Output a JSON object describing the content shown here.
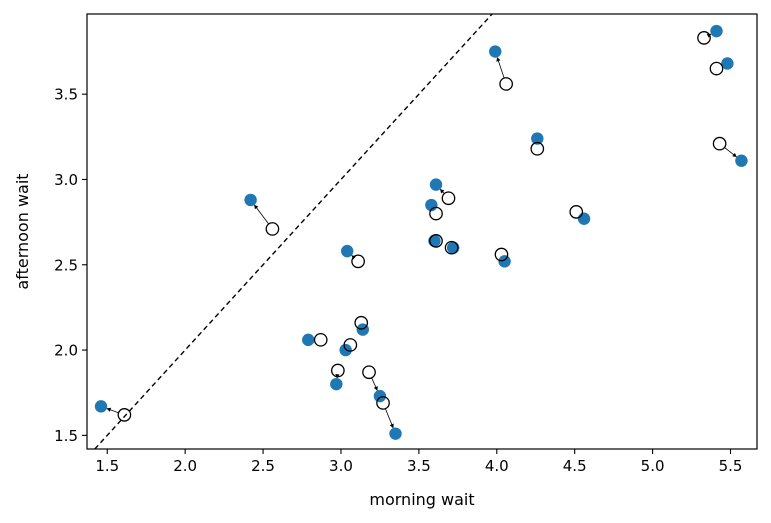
{
  "chart_data": {
    "type": "scatter",
    "xlabel": "morning wait",
    "ylabel": "afternoon wait",
    "xlim": [
      1.37,
      5.67
    ],
    "ylim": [
      1.42,
      3.97
    ],
    "xticks": [
      1.5,
      2.0,
      2.5,
      3.0,
      3.5,
      4.0,
      4.5,
      5.0,
      5.5
    ],
    "xtick_labels": [
      "1.5",
      "2.0",
      "2.5",
      "3.0",
      "3.5",
      "4.0",
      "4.5",
      "5.0",
      "5.5"
    ],
    "yticks": [
      1.5,
      2.0,
      2.5,
      3.0,
      3.5
    ],
    "ytick_labels": [
      "1.5",
      "2.0",
      "2.5",
      "3.0",
      "3.5"
    ],
    "grid": false,
    "reference_line": {
      "type": "identity",
      "style": "dashed",
      "color": "#000000"
    },
    "series": [
      {
        "marker": "filled-circle",
        "color": "#1f77b4",
        "points": [
          [
            1.46,
            1.67
          ],
          [
            2.42,
            2.88
          ],
          [
            2.79,
            2.06
          ],
          [
            2.97,
            1.8
          ],
          [
            3.03,
            2.0
          ],
          [
            3.04,
            2.58
          ],
          [
            3.14,
            2.12
          ],
          [
            3.25,
            1.73
          ],
          [
            3.35,
            1.51
          ],
          [
            3.58,
            2.85
          ],
          [
            3.6,
            2.64
          ],
          [
            3.61,
            2.97
          ],
          [
            3.72,
            2.6
          ],
          [
            3.99,
            3.75
          ],
          [
            4.05,
            2.52
          ],
          [
            4.26,
            3.24
          ],
          [
            4.56,
            2.77
          ],
          [
            5.41,
            3.87
          ],
          [
            5.48,
            3.68
          ],
          [
            5.57,
            3.11
          ]
        ]
      },
      {
        "marker": "open-circle",
        "color": "#000000",
        "points": [
          [
            1.61,
            1.62
          ],
          [
            2.56,
            2.71
          ],
          [
            2.87,
            2.06
          ],
          [
            2.98,
            1.88
          ],
          [
            3.06,
            2.03
          ],
          [
            3.11,
            2.52
          ],
          [
            3.13,
            2.16
          ],
          [
            3.18,
            1.87
          ],
          [
            3.27,
            1.69
          ],
          [
            3.61,
            2.8
          ],
          [
            3.61,
            2.64
          ],
          [
            3.69,
            2.89
          ],
          [
            3.71,
            2.6
          ],
          [
            4.06,
            3.56
          ],
          [
            4.03,
            2.56
          ],
          [
            4.26,
            3.18
          ],
          [
            4.51,
            2.81
          ],
          [
            5.33,
            3.83
          ],
          [
            5.41,
            3.65
          ],
          [
            5.43,
            3.21
          ]
        ]
      }
    ],
    "connectors": {
      "from_series": 1,
      "to_series": 0,
      "style": "thin-arrow",
      "color": "#000000"
    }
  }
}
